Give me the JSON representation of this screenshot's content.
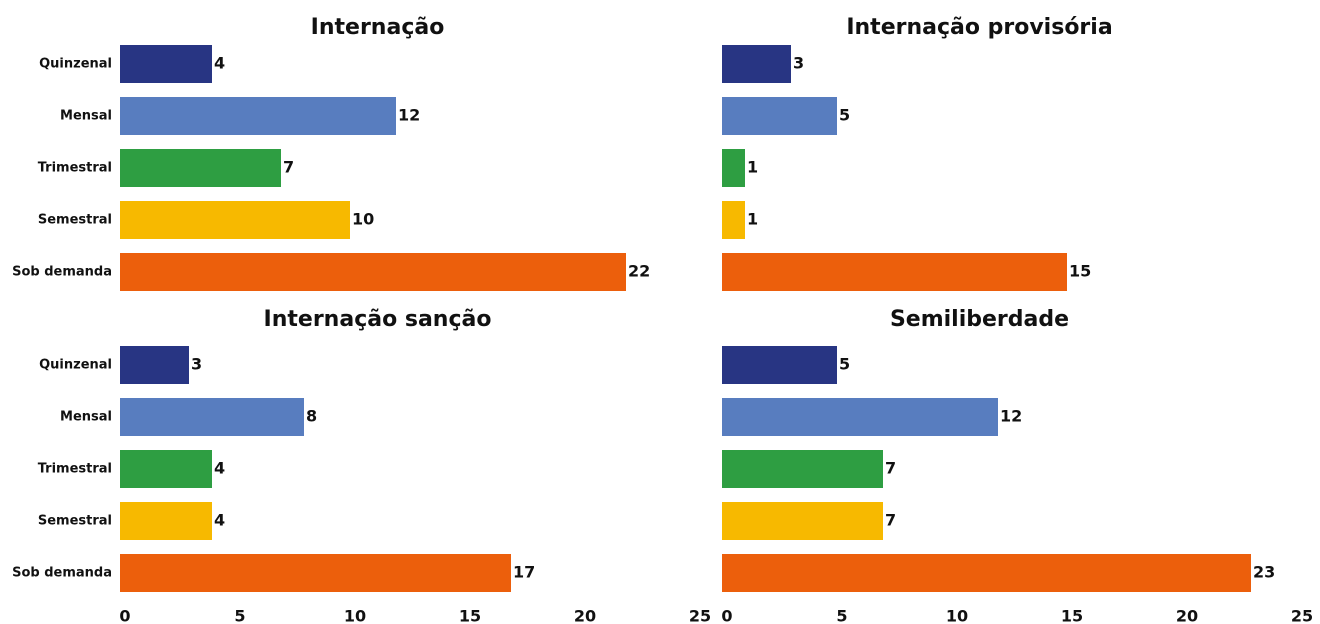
{
  "chart_data": [
    {
      "type": "bar",
      "orientation": "horizontal",
      "title": "Internação",
      "categories": [
        "Quinzenal",
        "Mensal",
        "Trimestral",
        "Semestral",
        "Sob demanda"
      ],
      "values": [
        4,
        12,
        7,
        10,
        22
      ],
      "colors": [
        "#283583",
        "#587dbf",
        "#2e9e42",
        "#f7b900",
        "#ec5f0c"
      ],
      "xlim": [
        0,
        25
      ]
    },
    {
      "type": "bar",
      "orientation": "horizontal",
      "title": "Internação provisória",
      "categories": [
        null,
        null,
        null,
        null,
        null
      ],
      "values": [
        3,
        5,
        1,
        1,
        15
      ],
      "colors": [
        "#283583",
        "#587dbf",
        "#2e9e42",
        "#f7b900",
        "#ec5f0c"
      ],
      "xlim": [
        0,
        25
      ]
    },
    {
      "type": "bar",
      "orientation": "horizontal",
      "title": "Internação sanção",
      "categories": [
        "Quinzenal",
        "Mensal",
        "Trimestral",
        "Semestral",
        "Sob demanda"
      ],
      "values": [
        3,
        8,
        4,
        4,
        17
      ],
      "colors": [
        "#283583",
        "#587dbf",
        "#2e9e42",
        "#f7b900",
        "#ec5f0c"
      ],
      "xlim": [
        0,
        25
      ],
      "xticks": [
        0,
        5,
        10,
        15,
        20,
        25
      ]
    },
    {
      "type": "bar",
      "orientation": "horizontal",
      "title": "Semiliberdade",
      "categories": [
        null,
        null,
        null,
        null,
        null
      ],
      "values": [
        5,
        12,
        7,
        7,
        23
      ],
      "colors": [
        "#283583",
        "#587dbf",
        "#2e9e42",
        "#f7b900",
        "#ec5f0c"
      ],
      "xlim": [
        0,
        25
      ],
      "xticks": [
        0,
        5,
        10,
        15,
        20,
        25
      ]
    }
  ]
}
